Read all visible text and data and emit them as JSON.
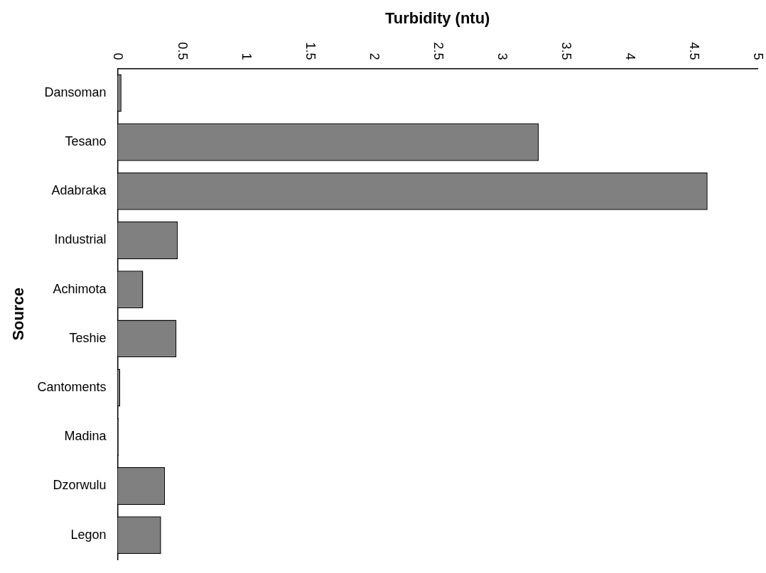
{
  "chart_data": {
    "type": "bar",
    "orientation": "horizontal",
    "xlabel": "Turbidity (ntu)",
    "ylabel": "Source",
    "categories": [
      "Dansoman",
      "Tesano",
      "Adabraka",
      "Industrial",
      "Achimota",
      "Teshie",
      "Cantoments",
      "Madina",
      "Dzorwulu",
      "Legon"
    ],
    "values": [
      0.03,
      3.29,
      4.61,
      0.47,
      0.2,
      0.46,
      0.02,
      0.01,
      0.37,
      0.34
    ],
    "color": "#808080",
    "xlim": [
      0,
      5
    ],
    "xticks": [
      0,
      0.5,
      1,
      1.5,
      2,
      2.5,
      3,
      3.5,
      4,
      4.5,
      5
    ],
    "grid": false,
    "legend": false
  }
}
